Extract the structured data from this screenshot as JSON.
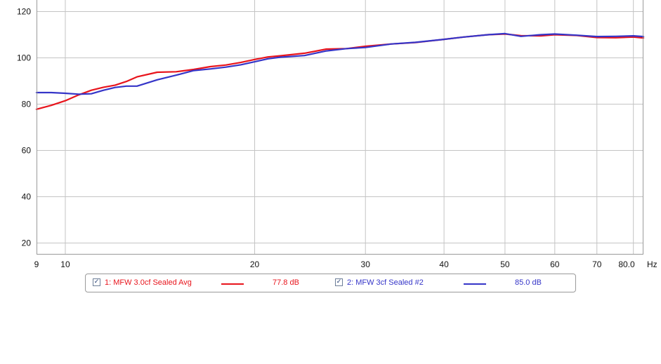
{
  "chart_data": {
    "type": "line",
    "x_scale": "log",
    "xlim": [
      9,
      83
    ],
    "ylim": [
      15,
      125
    ],
    "x_ticks": [
      {
        "value": 9,
        "label": "9"
      },
      {
        "value": 10,
        "label": "10"
      },
      {
        "value": 20,
        "label": "20"
      },
      {
        "value": 30,
        "label": "30"
      },
      {
        "value": 40,
        "label": "40"
      },
      {
        "value": 50,
        "label": "50"
      },
      {
        "value": 60,
        "label": "60"
      },
      {
        "value": 70,
        "label": "70"
      },
      {
        "value": 80,
        "label": "80.0"
      }
    ],
    "x_unit": "Hz",
    "y_ticks": [
      20,
      40,
      60,
      80,
      100,
      120
    ],
    "grid": true,
    "legend_position": "bottom",
    "series": [
      {
        "name": "1: MFW 3.0cf Sealed Avg",
        "legend_value": "77.8 dB",
        "color": "#e8141c",
        "x": [
          9,
          9.5,
          10,
          10.5,
          11,
          11.5,
          12,
          12.5,
          13,
          14,
          15,
          16,
          17,
          18,
          19,
          20,
          21,
          22,
          24,
          26,
          28,
          30,
          33,
          36,
          40,
          43,
          47,
          50,
          53,
          57,
          60,
          65,
          70,
          75,
          80,
          83
        ],
        "y": [
          77.8,
          79.5,
          81.5,
          84.0,
          86.0,
          87.3,
          88.2,
          89.8,
          91.8,
          93.8,
          94.0,
          95.0,
          96.2,
          96.9,
          98.0,
          99.3,
          100.4,
          100.9,
          102.0,
          103.8,
          104.0,
          105.0,
          106.0,
          106.6,
          108.0,
          109.0,
          110.0,
          110.3,
          109.6,
          109.5,
          110.0,
          109.7,
          108.8,
          108.7,
          109.0,
          108.6
        ]
      },
      {
        "name": "2: MFW 3cf Sealed #2",
        "legend_value": "85.0 dB",
        "color": "#3535c8",
        "x": [
          9,
          9.5,
          10,
          10.5,
          11,
          11.5,
          12,
          12.5,
          13,
          14,
          15,
          16,
          17,
          18,
          19,
          20,
          21,
          22,
          24,
          26,
          28,
          30,
          33,
          36,
          40,
          43,
          47,
          50,
          53,
          57,
          60,
          65,
          70,
          75,
          80,
          83
        ],
        "y": [
          85.0,
          85.0,
          84.7,
          84.3,
          84.5,
          86.0,
          87.2,
          87.8,
          87.8,
          90.5,
          92.5,
          94.5,
          95.2,
          96.0,
          97.0,
          98.3,
          99.6,
          100.3,
          101.0,
          103.0,
          104.0,
          104.5,
          106.0,
          106.7,
          108.0,
          109.0,
          110.0,
          110.5,
          109.3,
          110.0,
          110.3,
          109.8,
          109.2,
          109.3,
          109.5,
          109.2
        ]
      }
    ]
  }
}
